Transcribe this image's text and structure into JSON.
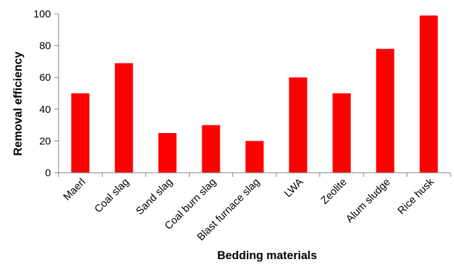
{
  "chart_data": {
    "type": "bar",
    "title": "",
    "xlabel": "Bedding materials",
    "ylabel": "Removal efficiency",
    "categories": [
      "Maerl",
      "Coal slag",
      "Sand slag",
      "Coal burn slag",
      "Blast furnace slag",
      "LWA",
      "Zeolite",
      "Alum sludge",
      "Rice husk"
    ],
    "values": [
      50,
      69,
      25,
      30,
      20,
      60,
      50,
      78,
      99
    ],
    "ylim": [
      0,
      100
    ],
    "yticks": [
      0,
      20,
      40,
      60,
      80,
      100
    ],
    "ytick_labels": [
      "0",
      "20",
      "40",
      "60",
      "80",
      "100"
    ],
    "grid": false,
    "legend": "none",
    "bar_color": "#ff0000"
  }
}
